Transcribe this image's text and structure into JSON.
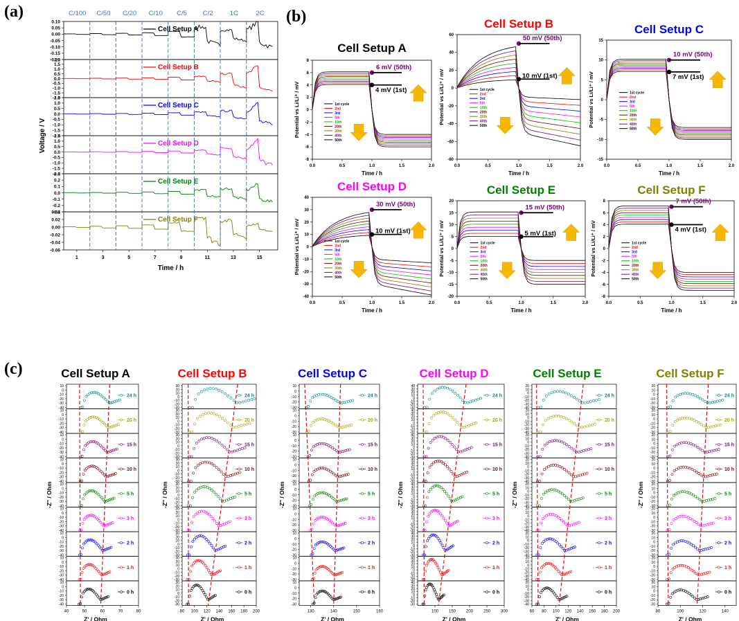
{
  "panel_labels": {
    "a": "(a)",
    "b": "(b)",
    "c": "(c)"
  },
  "colors": {
    "A": "#000000",
    "B": "#ff0000",
    "C": "#0000ff",
    "D": "#ff00ff",
    "E": "#008000",
    "F": "#808000",
    "cycles": [
      "#000000",
      "#ff0000",
      "#0000ff",
      "#ff00ff",
      "#00c000",
      "#800000",
      "#808000",
      "#800080"
    ],
    "eis": [
      "#008b8b",
      "#a6a600",
      "#800080",
      "#8b0000",
      "#008000",
      "#ff00ff",
      "#0000ff",
      "#ff0000",
      "#000000"
    ],
    "purple_marker": "#800080",
    "arrow": "#f5b700",
    "guide_red": "#ff0000"
  },
  "chart_data": [
    {
      "id": "a",
      "type": "line",
      "xlabel": "Time / h",
      "ylabel": "Voltage / V",
      "xticks": [
        "1",
        "3",
        "5",
        "7",
        "9",
        "11",
        "13",
        "15"
      ],
      "rate_labels": [
        "C/100",
        "C/50",
        "C/20",
        "C/10",
        "C/5",
        "C/2",
        "1C",
        "2C"
      ],
      "subplots": [
        {
          "name": "Cell Setup A",
          "color_key": "A",
          "ylim": [
            -0.2,
            0.1
          ],
          "yticks": [
            "0.10",
            "0.05",
            "0.00",
            "-0.05",
            "-0.10",
            "-0.15",
            "-0.20"
          ],
          "amplitudes": [
            0.004,
            0.008,
            0.012,
            0.02,
            0.04,
            0.1,
            0.06,
            0.12
          ]
        },
        {
          "name": "Cell Setup B",
          "color_key": "B",
          "ylim": [
            -2.0,
            2.0
          ],
          "yticks": [
            "2.0",
            "1.5",
            "1.0",
            "0.5",
            "0.0",
            "-0.5",
            "-1.0",
            "-1.5",
            "-2.0"
          ],
          "amplitudes": [
            0.03,
            0.06,
            0.1,
            0.15,
            0.25,
            0.4,
            1.0,
            1.6
          ]
        },
        {
          "name": "Cell Setup C",
          "color_key": "C",
          "ylim": [
            -2.0,
            1.5
          ],
          "yticks": [
            "1.5",
            "1.0",
            "0.5",
            "0.0",
            "-0.5",
            "-1.0",
            "-1.5",
            "-2.0"
          ],
          "amplitudes": [
            0.03,
            0.05,
            0.08,
            0.12,
            0.2,
            0.3,
            0.5,
            1.2
          ]
        },
        {
          "name": "Cell Setup D",
          "color_key": "D",
          "ylim": [
            -2.0,
            1.5
          ],
          "yticks": [
            "1.5",
            "1.0",
            "0.5",
            "0.0",
            "-0.5",
            "-1.0",
            "-1.5",
            "-2.0"
          ],
          "amplitudes": [
            0.02,
            0.04,
            0.06,
            0.1,
            0.16,
            0.3,
            0.7,
            1.4
          ]
        },
        {
          "name": "Cell Setup E",
          "color_key": "E",
          "ylim": [
            -0.3,
            0.3
          ],
          "yticks": [
            "0.3",
            "0.2",
            "0.1",
            "0.0",
            "-0.1",
            "-0.2",
            "-0.3"
          ],
          "amplitudes": [
            0.005,
            0.01,
            0.015,
            0.025,
            0.04,
            0.08,
            0.12,
            0.17
          ]
        },
        {
          "name": "Cell Setup F",
          "color_key": "F",
          "ylim": [
            -0.06,
            0.04
          ],
          "yticks": [
            "0.04",
            "0.02",
            "0.00",
            "-0.02",
            "-0.04",
            "-0.06"
          ],
          "amplitudes": [
            0.002,
            0.004,
            0.006,
            0.01,
            0.02,
            0.05,
            0.03,
            0.012
          ]
        }
      ]
    },
    {
      "id": "b",
      "type": "line",
      "xlabel": "Time / h",
      "ylabel": "Potential vs Li/Li⁺ / mV",
      "xticks": [
        "0.0",
        "0.5",
        "1.0",
        "1.5",
        "2.0"
      ],
      "legend": [
        "1st cycle",
        "2nd",
        "3rd",
        "5th",
        "10th",
        "20th",
        "30th",
        "40th",
        "50th"
      ],
      "subplots": [
        {
          "name": "Cell Setup A",
          "color_key": "A",
          "ylim": [
            -8,
            8
          ],
          "yticks": [
            "8",
            "6",
            "4",
            "2",
            "0",
            "-2",
            "-4",
            "-6",
            "-8"
          ],
          "first": 4,
          "fiftieth": 6,
          "label_50": "6 mV (50th)",
          "label_1": "4 mV (1st)"
        },
        {
          "name": "Cell Setup B",
          "color_key": "B",
          "ylim": [
            -80,
            60
          ],
          "yticks": [
            "60",
            "40",
            "20",
            "0",
            "-20",
            "-40",
            "-60",
            "-80"
          ],
          "first": 10,
          "fiftieth": 50,
          "label_50": "50 mV (50th)",
          "label_1": "10 mV (1st)"
        },
        {
          "name": "Cell Setup C",
          "color_key": "C",
          "ylim": [
            -15,
            15
          ],
          "yticks": [
            "15",
            "10",
            "5",
            "0",
            "-5",
            "-10",
            "-15"
          ],
          "first": 7,
          "fiftieth": 10,
          "label_50": "10 mV (50th)",
          "label_1": "7 mV (1st)"
        },
        {
          "name": "Cell Setup D",
          "color_key": "D",
          "ylim": [
            -40,
            40
          ],
          "yticks": [
            "40",
            "30",
            "20",
            "10",
            "0",
            "-10",
            "-20",
            "-30",
            "-40"
          ],
          "first": 10,
          "fiftieth": 30,
          "label_50": "30 mV (50th)",
          "label_1": "10 mV (1st)"
        },
        {
          "name": "Cell Setup E",
          "color_key": "E",
          "ylim": [
            -20,
            20
          ],
          "yticks": [
            "20",
            "15",
            "10",
            "5",
            "0",
            "-5",
            "-10",
            "-15",
            "-20"
          ],
          "first": 5,
          "fiftieth": 15,
          "label_50": "15 mV (50th)",
          "label_1": "5 mV (1st)"
        },
        {
          "name": "Cell Setup F",
          "color_key": "F",
          "ylim": [
            -8,
            8
          ],
          "yticks": [
            "8",
            "6",
            "4",
            "2",
            "0",
            "-2",
            "-4",
            "-6",
            "-8"
          ],
          "first": 4,
          "fiftieth": 7,
          "label_50": "7 mV (50th)",
          "label_1": "4 mV (1st)"
        }
      ]
    },
    {
      "id": "c",
      "type": "scatter",
      "xlabel": "Z' / Ohm",
      "ylabel": "-Z'' / Ohm",
      "times": [
        "24 h",
        "20 h",
        "15 h",
        "10 h",
        "5 h",
        "3 h",
        "2 h",
        "1 h",
        "0 h"
      ],
      "subplots": [
        {
          "name": "Cell Setup A",
          "color_key": "A",
          "xlim": [
            40,
            80
          ],
          "xticks": [
            "40",
            "50",
            "60",
            "70",
            "80"
          ],
          "yticks": [
            "10",
            "0",
            "-10",
            "-20",
            "-30",
            "-40"
          ],
          "r0": [
            47,
            48
          ],
          "r1": [
            59,
            64
          ],
          "hump": 0.55
        },
        {
          "name": "Cell Setup B",
          "color_key": "B",
          "xlim": [
            80,
            200
          ],
          "xticks": [
            "80",
            "100",
            "120",
            "140",
            "160",
            "180",
            "200"
          ],
          "yticks": [
            "30",
            "20",
            "10",
            "0",
            "-10",
            "-20",
            "-30"
          ],
          "r0": [
            88,
            92
          ],
          "r1": [
            122,
            170
          ],
          "hump": 0.75
        },
        {
          "name": "Cell Setup C",
          "color_key": "C",
          "xlim": [
            125,
            160
          ],
          "xticks": [
            "130",
            "140",
            "150",
            "160"
          ],
          "yticks": [
            "10",
            "0",
            "-10",
            "-20",
            "-30"
          ],
          "r0": [
            131,
            128
          ],
          "r1": [
            140,
            143
          ],
          "hump": 0.45
        },
        {
          "name": "Cell Setup D",
          "color_key": "D",
          "xlim": [
            50,
            300
          ],
          "xticks": [
            "100",
            "150",
            "200",
            "250",
            "300"
          ],
          "yticks": [
            "40",
            "30",
            "20",
            "10",
            "0",
            "-10",
            "-20",
            "-30"
          ],
          "r0": [
            65,
            70
          ],
          "r1": [
            110,
            190
          ],
          "hump": 0.8
        },
        {
          "name": "Cell Setup E",
          "color_key": "E",
          "xlim": [
            60,
            200
          ],
          "xticks": [
            "60",
            "80",
            "100",
            "120",
            "140",
            "160",
            "180",
            "200"
          ],
          "yticks": [
            "20",
            "10",
            "0",
            "-10",
            "-20",
            "-30",
            "-40"
          ],
          "r0": [
            68,
            70
          ],
          "r1": [
            105,
            145
          ],
          "hump": 0.6
        },
        {
          "name": "Cell Setup F",
          "color_key": "F",
          "xlim": [
            80,
            150
          ],
          "xticks": [
            "80",
            "100",
            "120",
            "140"
          ],
          "yticks": [
            "20",
            "10",
            "0",
            "-10",
            "-20",
            "-30"
          ],
          "r0": [
            88,
            89
          ],
          "r1": [
            115,
            125
          ],
          "hump": 0.5
        }
      ]
    }
  ]
}
